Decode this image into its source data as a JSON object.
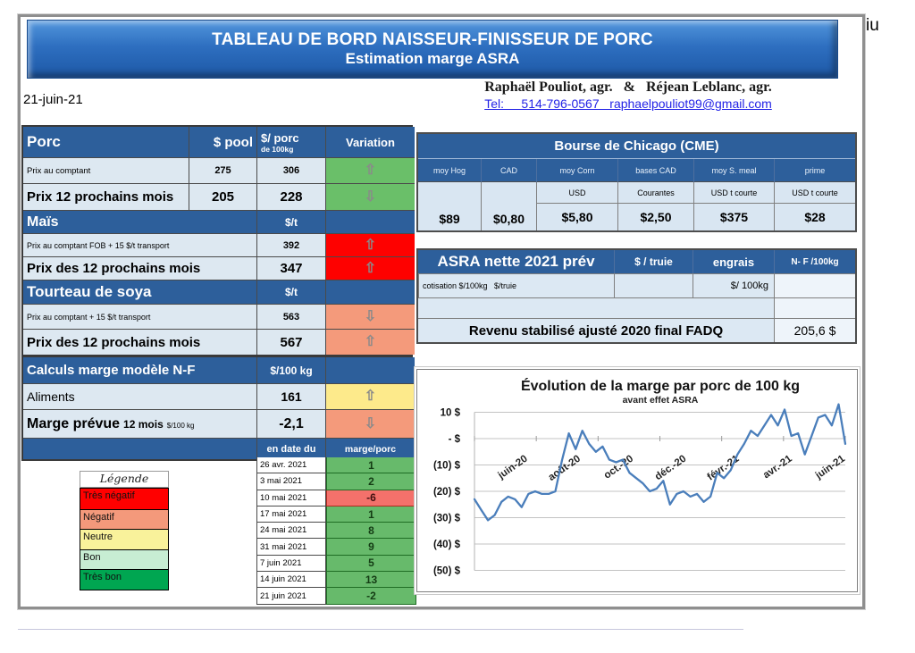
{
  "misc": {
    "corner_text": "iu",
    "report_date": "21-juin-21"
  },
  "banner": {
    "line1": "TABLEAU DE BORD NAISSEUR-FINISSEUR DE PORC",
    "line2": "Estimation marge ASRA"
  },
  "contact": {
    "names": "Raphaël Pouliot, agr.   &   Réjean Leblanc, agr.",
    "tel_email": "Tel:     514-796-0567   raphaelpouliot99@gmail.com"
  },
  "porc": {
    "title": "Porc",
    "col_pool": "$ pool",
    "col_porc_a": "$/ porc",
    "col_porc_b": "de 100kg",
    "col_variation": "Variation",
    "rows": [
      {
        "label": "Prix au comptant",
        "pool": "275",
        "porc": "306",
        "trend": "up",
        "tone": "green"
      },
      {
        "label": "Prix 12 prochains mois",
        "pool": "205",
        "porc": "228",
        "trend": "down",
        "tone": "green"
      }
    ],
    "mais_title": "Maïs",
    "mais_unit": "$/t",
    "mais_rows": [
      {
        "label": "Prix au comptant  FOB + 15 $/t transport",
        "value": "392",
        "trend": "up",
        "tone": "red"
      },
      {
        "label": "Prix des 12 prochains mois",
        "value": "347",
        "trend": "up",
        "tone": "red"
      }
    ],
    "soya_title": "Tourteau de soya",
    "soya_unit": "$/t",
    "soya_rows": [
      {
        "label": "Prix au comptant  + 15 $/t  transport",
        "value": "563",
        "trend": "down",
        "tone": "salmon"
      },
      {
        "label": "Prix des 12 prochains mois",
        "value": "567",
        "trend": "up",
        "tone": "salmon"
      }
    ]
  },
  "calculs": {
    "title": "Calculs marge  modèle N-F",
    "unit": "$/100 kg",
    "aliments_label": "Aliments",
    "aliments_value": "161",
    "aliments_trend": "up",
    "aliments_tone": "yellow",
    "marge_label_main": "Marge prévue",
    "marge_label_mid": "12 mois",
    "marge_label_small": "$/100 kg",
    "marge_value": "-2,1",
    "marge_trend": "down",
    "marge_tone": "salmon",
    "date_col": "en date du",
    "marge_col": "marge/porc"
  },
  "marge_history": [
    {
      "date": "26 avr. 2021",
      "value": "1",
      "tone": "green"
    },
    {
      "date": "3 mai 2021",
      "value": "2",
      "tone": "green"
    },
    {
      "date": "10 mai 2021",
      "value": "-6",
      "tone": "red"
    },
    {
      "date": "17 mai 2021",
      "value": "1",
      "tone": "green"
    },
    {
      "date": "24 mai 2021",
      "value": "8",
      "tone": "green"
    },
    {
      "date": "31 mai 2021",
      "value": "9",
      "tone": "green"
    },
    {
      "date": "7 juin 2021",
      "value": "5",
      "tone": "green"
    },
    {
      "date": "14 juin 2021",
      "value": "13",
      "tone": "green"
    },
    {
      "date": "21 juin 2021",
      "value": "-2",
      "tone": "green"
    }
  ],
  "legende": {
    "title": "Légende",
    "items": [
      {
        "label": "Très négatif",
        "color": "#ff0000"
      },
      {
        "label": "Négatif",
        "color": "#f4997b"
      },
      {
        "label": "Neutre",
        "color": "#f9f29b"
      },
      {
        "label": "Bon",
        "color": "#c7edd3"
      },
      {
        "label": "Très bon",
        "color": "#00a651"
      }
    ]
  },
  "cme": {
    "title": "Bourse de Chicago (CME)",
    "columns": [
      {
        "header": "moy Hog",
        "sub": "",
        "value": "$89"
      },
      {
        "header": "CAD",
        "sub": "",
        "value": "$0,80"
      },
      {
        "header": "moy Corn",
        "sub": "USD",
        "value": "$5,80"
      },
      {
        "header": "bases CAD",
        "sub": "Courantes",
        "value": "$2,50"
      },
      {
        "header": "moy S. meal",
        "sub": "USD t courte",
        "value": "$375"
      },
      {
        "header": "prime",
        "sub": "USD t courte",
        "value": "$28"
      }
    ]
  },
  "asra": {
    "title": "ASRA nette 2021 prév",
    "col_truie": "$ / truie",
    "col_engrais": "engrais",
    "col_nf": "N- F /100kg",
    "cotisation_label": "cotisation $/100kg   $/truie",
    "engrais_unit": "$/ 100kg",
    "revenu_label": "Revenu stabilisé ajusté 2020 final FADQ",
    "revenu_value": "205,6 $"
  },
  "chart_data": {
    "type": "line",
    "title": "Évolution de la marge par porc de 100 kg",
    "subtitle": "avant effet ASRA",
    "ylim": [
      -50,
      10
    ],
    "y_ticks": [
      10,
      0,
      -10,
      -20,
      -30,
      -40,
      -50
    ],
    "y_tick_labels": [
      "10 $",
      "-  $",
      "(10) $",
      "(20) $",
      "(30) $",
      "(40) $",
      "(50) $"
    ],
    "x_tick_labels": [
      "juin-20",
      "août-20",
      "oct.-20",
      "déc.-20",
      "févr.-21",
      "avr.-21",
      "juin-21"
    ],
    "grid": true,
    "legend_position": "none",
    "series": [
      {
        "name": "marge par porc de 100 kg",
        "color": "#4a7ebb",
        "values": [
          -23,
          -27,
          -31,
          -29,
          -24,
          -22,
          -23,
          -26,
          -21,
          -20,
          -21,
          -21,
          -20,
          -8,
          2,
          -4,
          3,
          -2,
          -5,
          -3,
          -8,
          -9,
          -8,
          -13,
          -15,
          -17,
          -20,
          -19,
          -16,
          -25,
          -21,
          -20,
          -22,
          -21,
          -24,
          -22,
          -13,
          -15,
          -12,
          -6,
          -2,
          3,
          1,
          5,
          9,
          5,
          11,
          1,
          2,
          -6,
          1,
          8,
          9,
          5,
          13,
          -2
        ]
      }
    ]
  }
}
